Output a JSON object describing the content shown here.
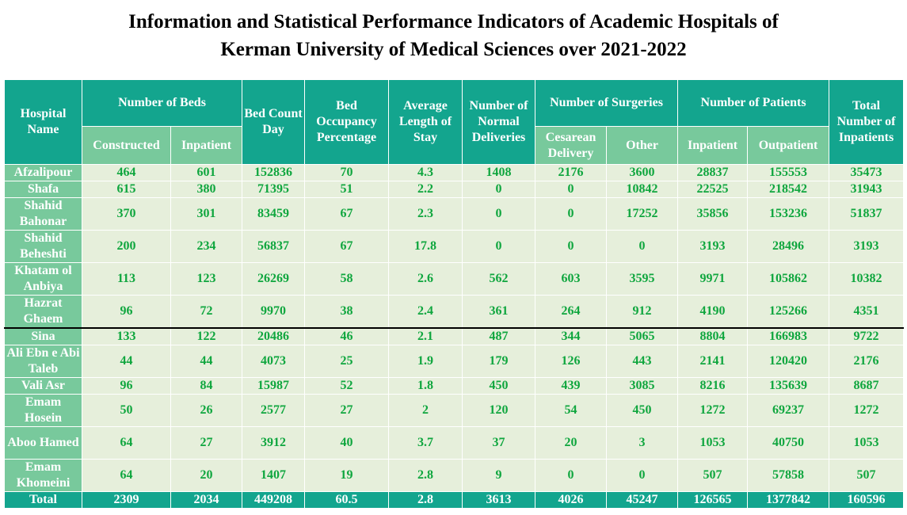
{
  "title": {
    "line1": "Information and Statistical Performance Indicators of Academic Hospitals of",
    "line2": "Kerman University of Medical Sciences over 2021-2022"
  },
  "headers": {
    "hospital_name": "Hospital Name",
    "number_of_beds": "Number of Beds",
    "constructed": "Constructed",
    "inpatient_beds": "Inpatient",
    "bed_count_day": "Bed Count Day",
    "bed_occupancy": "Bed Occupancy Percentage",
    "avg_length_of_stay": "Average Length of Stay",
    "normal_deliveries": "Number of Normal Deliveries",
    "number_of_surgeries": "Number of Surgeries",
    "cesarean": "Cesarean Delivery",
    "other": "Other",
    "number_of_patients": "Number of Patients",
    "inpatient_patients": "Inpatient",
    "outpatient": "Outpatient",
    "total_inpatients": "Total Number of Inpatients"
  },
  "rows": [
    {
      "name": "Afzalipour",
      "constructed": "464",
      "inpatient_beds": "601",
      "bed_count_day": "152836",
      "occupancy": "70",
      "alos": "4.3",
      "normal": "1408",
      "cesarean": "2176",
      "other": "3600",
      "inpatient": "28837",
      "outpatient": "155553",
      "total": "35473"
    },
    {
      "name": "Shafa",
      "constructed": "615",
      "inpatient_beds": "380",
      "bed_count_day": "71395",
      "occupancy": "51",
      "alos": "2.2",
      "normal": "0",
      "cesarean": "0",
      "other": "10842",
      "inpatient": "22525",
      "outpatient": "218542",
      "total": "31943"
    },
    {
      "name": "Shahid Bahonar",
      "constructed": "370",
      "inpatient_beds": "301",
      "bed_count_day": "83459",
      "occupancy": "67",
      "alos": "2.3",
      "normal": "0",
      "cesarean": "0",
      "other": "17252",
      "inpatient": "35856",
      "outpatient": "153236",
      "total": "51837"
    },
    {
      "name": "Shahid Beheshti",
      "constructed": "200",
      "inpatient_beds": "234",
      "bed_count_day": "56837",
      "occupancy": "67",
      "alos": "17.8",
      "normal": "0",
      "cesarean": "0",
      "other": "0",
      "inpatient": "3193",
      "outpatient": "28496",
      "total": "3193"
    },
    {
      "name": "Khatam ol Anbiya",
      "constructed": "113",
      "inpatient_beds": "123",
      "bed_count_day": "26269",
      "occupancy": "58",
      "alos": "2.6",
      "normal": "562",
      "cesarean": "603",
      "other": "3595",
      "inpatient": "9971",
      "outpatient": "105862",
      "total": "10382"
    },
    {
      "name": "Hazrat Ghaem",
      "constructed": "96",
      "inpatient_beds": "72",
      "bed_count_day": "9970",
      "occupancy": "38",
      "alos": "2.4",
      "normal": "361",
      "cesarean": "264",
      "other": "912",
      "inpatient": "4190",
      "outpatient": "125266",
      "total": "4351"
    },
    {
      "name": "Sina",
      "constructed": "133",
      "inpatient_beds": "122",
      "bed_count_day": "20486",
      "occupancy": "46",
      "alos": "2.1",
      "normal": "487",
      "cesarean": "344",
      "other": "5065",
      "inpatient": "8804",
      "outpatient": "166983",
      "total": "9722"
    },
    {
      "name": "Ali Ebn e Abi Taleb",
      "constructed": "44",
      "inpatient_beds": "44",
      "bed_count_day": "4073",
      "occupancy": "25",
      "alos": "1.9",
      "normal": "179",
      "cesarean": "126",
      "other": "443",
      "inpatient": "2141",
      "outpatient": "120420",
      "total": "2176"
    },
    {
      "name": "Vali Asr",
      "constructed": "96",
      "inpatient_beds": "84",
      "bed_count_day": "15987",
      "occupancy": "52",
      "alos": "1.8",
      "normal": "450",
      "cesarean": "439",
      "other": "3085",
      "inpatient": "8216",
      "outpatient": "135639",
      "total": "8687"
    },
    {
      "name": "Emam Hosein",
      "constructed": "50",
      "inpatient_beds": "26",
      "bed_count_day": "2577",
      "occupancy": "27",
      "alos": "2",
      "normal": "120",
      "cesarean": "54",
      "other": "450",
      "inpatient": "1272",
      "outpatient": "69237",
      "total": "1272"
    },
    {
      "name": "Aboo Hamed",
      "constructed": "64",
      "inpatient_beds": "27",
      "bed_count_day": "3912",
      "occupancy": "40",
      "alos": "3.7",
      "normal": "37",
      "cesarean": "20",
      "other": "3",
      "inpatient": "1053",
      "outpatient": "40750",
      "total": "1053"
    },
    {
      "name": "Emam Khomeini",
      "constructed": "64",
      "inpatient_beds": "20",
      "bed_count_day": "1407",
      "occupancy": "19",
      "alos": "2.8",
      "normal": "9",
      "cesarean": "0",
      "other": "0",
      "inpatient": "507",
      "outpatient": "57858",
      "total": "507"
    }
  ],
  "total": {
    "name": "Total",
    "constructed": "2309",
    "inpatient_beds": "2034",
    "bed_count_day": "449208",
    "occupancy": "60.5",
    "alos": "2.8",
    "normal": "3613",
    "cesarean": "4026",
    "other": "45247",
    "inpatient": "126565",
    "outpatient": "1377842",
    "total": "160596"
  },
  "colors": {
    "header_dark": "#13a58e",
    "header_light": "#78c99c",
    "cell_bg": "#e6efdb",
    "value_text": "#0fa63e"
  }
}
